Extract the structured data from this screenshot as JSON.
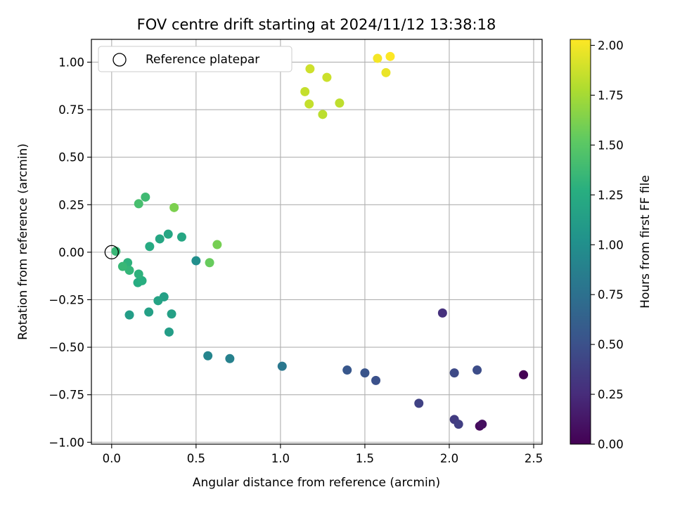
{
  "chart_data": {
    "type": "scatter",
    "title": "FOV centre drift starting at 2024/11/12 13:38:18",
    "xlabel": "Angular distance from reference (arcmin)",
    "ylabel": "Rotation from reference (arcmin)",
    "xlim": [
      -0.12,
      2.55
    ],
    "ylim": [
      -1.01,
      1.12
    ],
    "xticks": [
      0.0,
      0.5,
      1.0,
      1.5,
      2.0,
      2.5
    ],
    "xtick_labels": [
      "0.0",
      "0.5",
      "1.0",
      "1.5",
      "2.0",
      "2.5"
    ],
    "yticks": [
      -1.0,
      -0.75,
      -0.5,
      -0.25,
      0.0,
      0.25,
      0.5,
      0.75,
      1.0
    ],
    "ytick_labels": [
      "−1.00",
      "−0.75",
      "−0.50",
      "−0.25",
      "0.00",
      "0.25",
      "0.50",
      "0.75",
      "1.00"
    ],
    "grid": true,
    "legend": {
      "position": "top-left",
      "entries": [
        "Reference platepar"
      ]
    },
    "reference_point": {
      "x": 0.0,
      "y": 0.0,
      "label": "Reference platepar"
    },
    "colorbar": {
      "label": "Hours from first FF file",
      "colormap": "viridis",
      "range": [
        0.0,
        2.03
      ],
      "ticks": [
        0.0,
        0.25,
        0.5,
        0.75,
        1.0,
        1.25,
        1.5,
        1.75,
        2.0
      ],
      "tick_labels": [
        "0.00",
        "0.25",
        "0.50",
        "0.75",
        "1.00",
        "1.25",
        "1.50",
        "1.75",
        "2.00"
      ]
    },
    "points": [
      {
        "x": 2.44,
        "y": -0.645,
        "c": 0.0
      },
      {
        "x": 2.18,
        "y": -0.915,
        "c": 0.05
      },
      {
        "x": 2.195,
        "y": -0.905,
        "c": 0.08
      },
      {
        "x": 1.96,
        "y": -0.32,
        "c": 0.28
      },
      {
        "x": 2.03,
        "y": -0.88,
        "c": 0.35
      },
      {
        "x": 2.055,
        "y": -0.905,
        "c": 0.38
      },
      {
        "x": 1.82,
        "y": -0.795,
        "c": 0.4
      },
      {
        "x": 2.03,
        "y": -0.635,
        "c": 0.45
      },
      {
        "x": 2.165,
        "y": -0.62,
        "c": 0.47
      },
      {
        "x": 1.565,
        "y": -0.675,
        "c": 0.5
      },
      {
        "x": 1.5,
        "y": -0.635,
        "c": 0.53
      },
      {
        "x": 1.395,
        "y": -0.62,
        "c": 0.55
      },
      {
        "x": 1.01,
        "y": -0.6,
        "c": 0.8
      },
      {
        "x": 0.7,
        "y": -0.56,
        "c": 0.88
      },
      {
        "x": 0.57,
        "y": -0.545,
        "c": 0.92
      },
      {
        "x": 0.5,
        "y": -0.045,
        "c": 1.0
      },
      {
        "x": 0.34,
        "y": -0.42,
        "c": 1.12
      },
      {
        "x": 0.105,
        "y": -0.33,
        "c": 1.12
      },
      {
        "x": 0.355,
        "y": -0.325,
        "c": 1.15
      },
      {
        "x": 0.22,
        "y": -0.315,
        "c": 1.15
      },
      {
        "x": 0.31,
        "y": -0.235,
        "c": 1.15
      },
      {
        "x": 0.275,
        "y": -0.255,
        "c": 1.17
      },
      {
        "x": 0.415,
        "y": 0.08,
        "c": 1.2
      },
      {
        "x": 0.335,
        "y": 0.095,
        "c": 1.2
      },
      {
        "x": 0.285,
        "y": 0.07,
        "c": 1.2
      },
      {
        "x": 0.225,
        "y": 0.03,
        "c": 1.23
      },
      {
        "x": 0.155,
        "y": -0.16,
        "c": 1.25
      },
      {
        "x": 0.18,
        "y": -0.15,
        "c": 1.27
      },
      {
        "x": 0.16,
        "y": -0.115,
        "c": 1.3
      },
      {
        "x": 0.095,
        "y": -0.055,
        "c": 1.3
      },
      {
        "x": 0.105,
        "y": -0.095,
        "c": 1.33
      },
      {
        "x": 0.065,
        "y": -0.075,
        "c": 1.35
      },
      {
        "x": 0.025,
        "y": 0.005,
        "c": 1.35
      },
      {
        "x": 0.2,
        "y": 0.29,
        "c": 1.38
      },
      {
        "x": 0.16,
        "y": 0.255,
        "c": 1.42
      },
      {
        "x": 0.58,
        "y": -0.055,
        "c": 1.55
      },
      {
        "x": 0.625,
        "y": 0.04,
        "c": 1.6
      },
      {
        "x": 0.37,
        "y": 0.235,
        "c": 1.62
      },
      {
        "x": 1.25,
        "y": 0.725,
        "c": 1.82
      },
      {
        "x": 1.35,
        "y": 0.785,
        "c": 1.83
      },
      {
        "x": 1.17,
        "y": 0.78,
        "c": 1.85
      },
      {
        "x": 1.145,
        "y": 0.845,
        "c": 1.85
      },
      {
        "x": 1.275,
        "y": 0.92,
        "c": 1.87
      },
      {
        "x": 1.175,
        "y": 0.965,
        "c": 1.88
      },
      {
        "x": 1.625,
        "y": 0.945,
        "c": 1.97
      },
      {
        "x": 1.575,
        "y": 1.02,
        "c": 2.0
      },
      {
        "x": 1.65,
        "y": 1.03,
        "c": 2.03
      }
    ]
  }
}
